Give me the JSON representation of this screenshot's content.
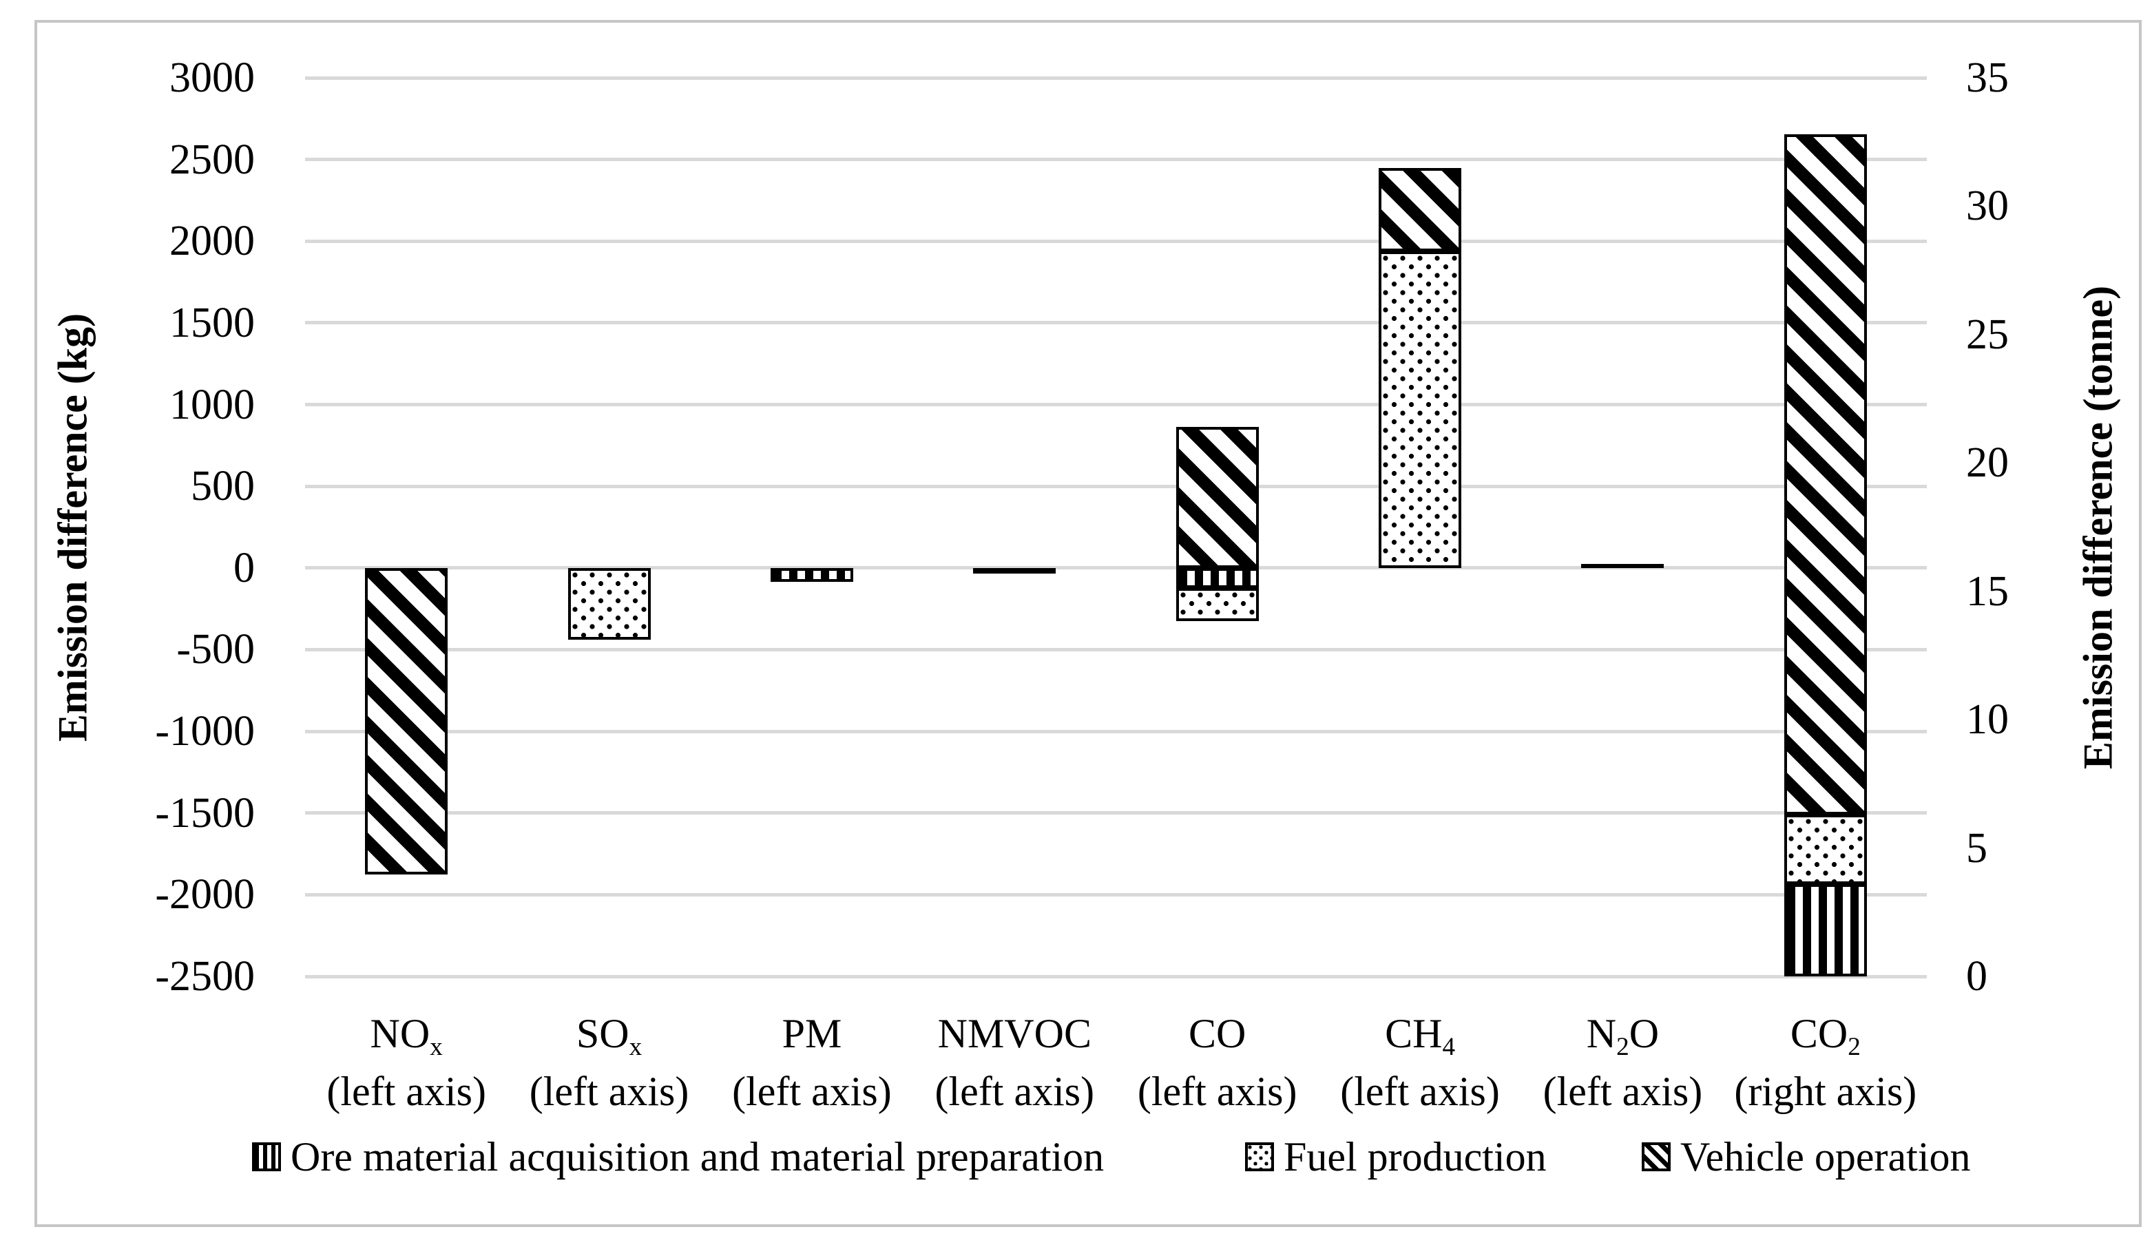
{
  "figure": {
    "background": "#ffffff",
    "border_color": "#c6c6c6",
    "grid_color": "#d9d9d9",
    "pattern_color": "#000000"
  },
  "chart_data": {
    "type": "bar",
    "stacked": true,
    "grid": "horizontal",
    "legend_position": "bottom",
    "left_axis": {
      "label": "Emission difference (kg)",
      "min": -2500,
      "max": 3000,
      "step": 500,
      "ticks": [
        3000,
        2500,
        2000,
        1500,
        1000,
        500,
        0,
        -500,
        -1000,
        -1500,
        -2000,
        -2500
      ]
    },
    "right_axis": {
      "label": "Emission difference (tonne)",
      "min": 0,
      "max": 35,
      "step": 5,
      "ticks": [
        35,
        30,
        25,
        20,
        15,
        10,
        5,
        0
      ]
    },
    "categories": [
      {
        "id": "NOx",
        "parts": [
          [
            "NO",
            false
          ],
          [
            "x",
            true
          ]
        ],
        "axis_note": "(left axis)",
        "axis": "left",
        "unit": "kg"
      },
      {
        "id": "SOx",
        "parts": [
          [
            "SO",
            false
          ],
          [
            "x",
            true
          ]
        ],
        "axis_note": "(left axis)",
        "axis": "left",
        "unit": "kg"
      },
      {
        "id": "PM",
        "parts": [
          [
            "PM",
            false
          ]
        ],
        "axis_note": "(left axis)",
        "axis": "left",
        "unit": "kg"
      },
      {
        "id": "NMVOC",
        "parts": [
          [
            "NMVOC",
            false
          ]
        ],
        "axis_note": "(left axis)",
        "axis": "left",
        "unit": "kg"
      },
      {
        "id": "CO",
        "parts": [
          [
            "CO",
            false
          ]
        ],
        "axis_note": "(left axis)",
        "axis": "left",
        "unit": "kg"
      },
      {
        "id": "CH4",
        "parts": [
          [
            "CH",
            false
          ],
          [
            "4",
            true
          ]
        ],
        "axis_note": "(left axis)",
        "axis": "left",
        "unit": "kg"
      },
      {
        "id": "N2O",
        "parts": [
          [
            "N",
            false
          ],
          [
            "2",
            true
          ],
          [
            "O",
            false
          ]
        ],
        "axis_note": "(left axis)",
        "axis": "left",
        "unit": "kg"
      },
      {
        "id": "CO2",
        "parts": [
          [
            "CO",
            false
          ],
          [
            "2",
            true
          ]
        ],
        "axis_note": "(right axis)",
        "axis": "right",
        "unit": "tonne"
      }
    ],
    "series": [
      {
        "name": "Ore material acquisition and material preparation",
        "pattern": "vertical-stripes",
        "values": [
          0,
          0,
          -85,
          0,
          -125,
          0,
          0,
          3.6
        ]
      },
      {
        "name": "Fuel production",
        "pattern": "dots",
        "values": [
          0,
          -440,
          0,
          0,
          -200,
          1940,
          0,
          2.7
        ]
      },
      {
        "name": "Vehicle operation",
        "pattern": "diagonal-stripes",
        "values": [
          -1875,
          0,
          0,
          -30,
          865,
          510,
          0,
          26.5
        ]
      }
    ]
  }
}
